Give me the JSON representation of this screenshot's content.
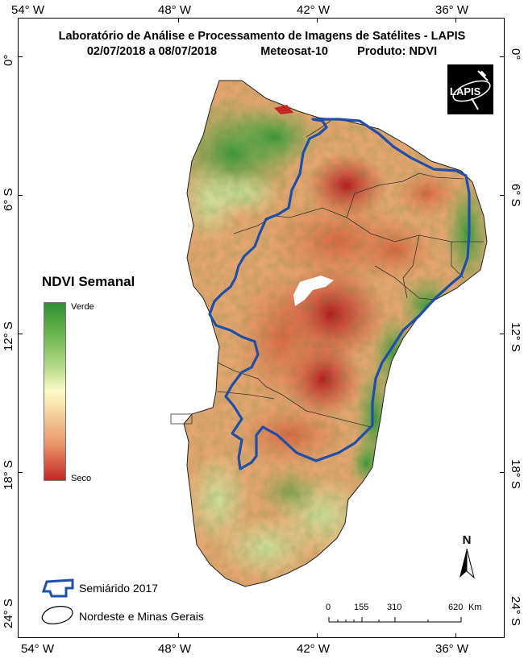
{
  "title": {
    "line1": "Laboratório de Análise e Processamento de Imagens de Satélites - LAPIS",
    "period": "02/07/2018 a 08/07/2018",
    "satellite": "Meteosat-10",
    "product": "Produto: NDVI"
  },
  "logo": {
    "text": "LAPIS"
  },
  "coordinates": {
    "longitudes": [
      "54° W",
      "48° W",
      "42° W",
      "36° W"
    ],
    "latitudes": [
      "0°",
      "6° S",
      "12° S",
      "18° S",
      "24° S"
    ]
  },
  "legend": {
    "title": "NDVI Semanal",
    "high_label": "Verde",
    "low_label": "Seco",
    "colors": [
      "#2e8f34",
      "#b4d98a",
      "#fdfbc7",
      "#e9936a",
      "#c42626"
    ]
  },
  "map_legend": {
    "semiarid_label": "Semiárido 2017",
    "region_label": "Nordeste e Minas Gerais",
    "semiarid_color": "#1f4fa8"
  },
  "north_arrow": {
    "label": "N"
  },
  "scale_bar": {
    "ticks": [
      "0",
      "155",
      "310",
      "620"
    ],
    "unit": "Km"
  }
}
